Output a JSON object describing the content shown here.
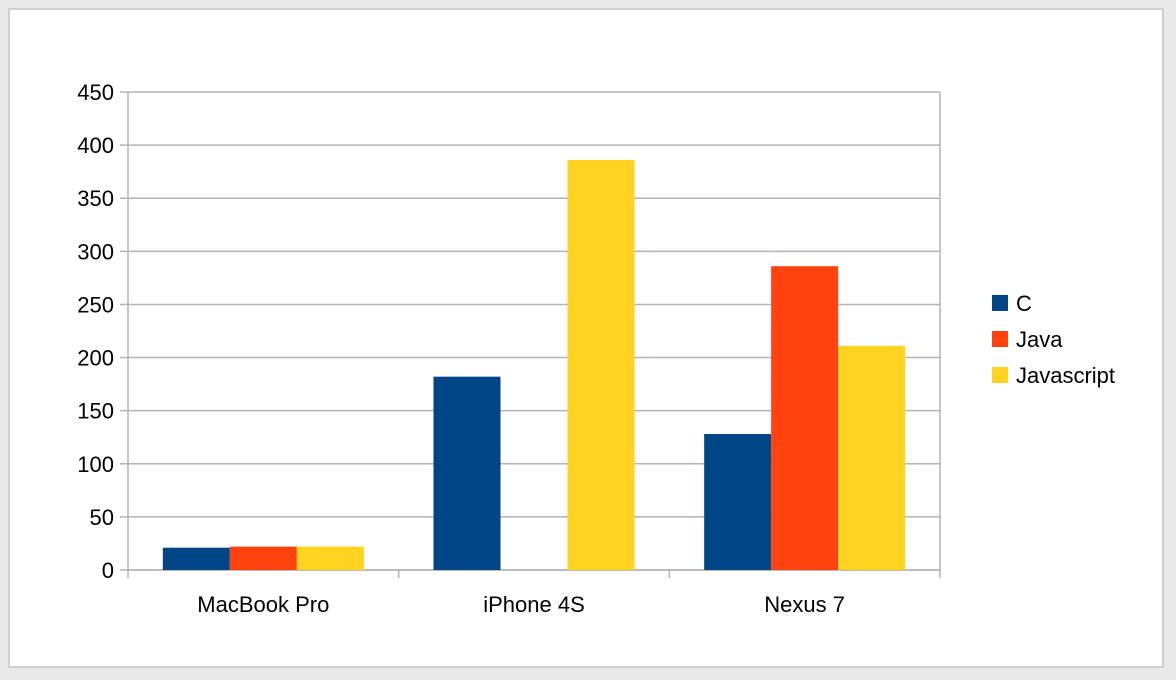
{
  "chart_data": {
    "type": "bar",
    "title": "",
    "xlabel": "",
    "ylabel": "",
    "categories": [
      "MacBook Pro",
      "iPhone 4S",
      "Nexus 7"
    ],
    "series": [
      {
        "name": "C",
        "color": "#004586",
        "values": [
          21,
          182,
          128
        ]
      },
      {
        "name": "Java",
        "color": "#ff420e",
        "values": [
          22,
          0,
          286
        ]
      },
      {
        "name": "Javascript",
        "color": "#ffd320",
        "values": [
          22,
          386,
          211
        ]
      }
    ],
    "ylim": [
      0,
      450
    ],
    "yticks": [
      "0",
      "50",
      "100",
      "150",
      "200",
      "250",
      "300",
      "350",
      "400",
      "450"
    ],
    "grid": true,
    "legend_position": "right"
  }
}
